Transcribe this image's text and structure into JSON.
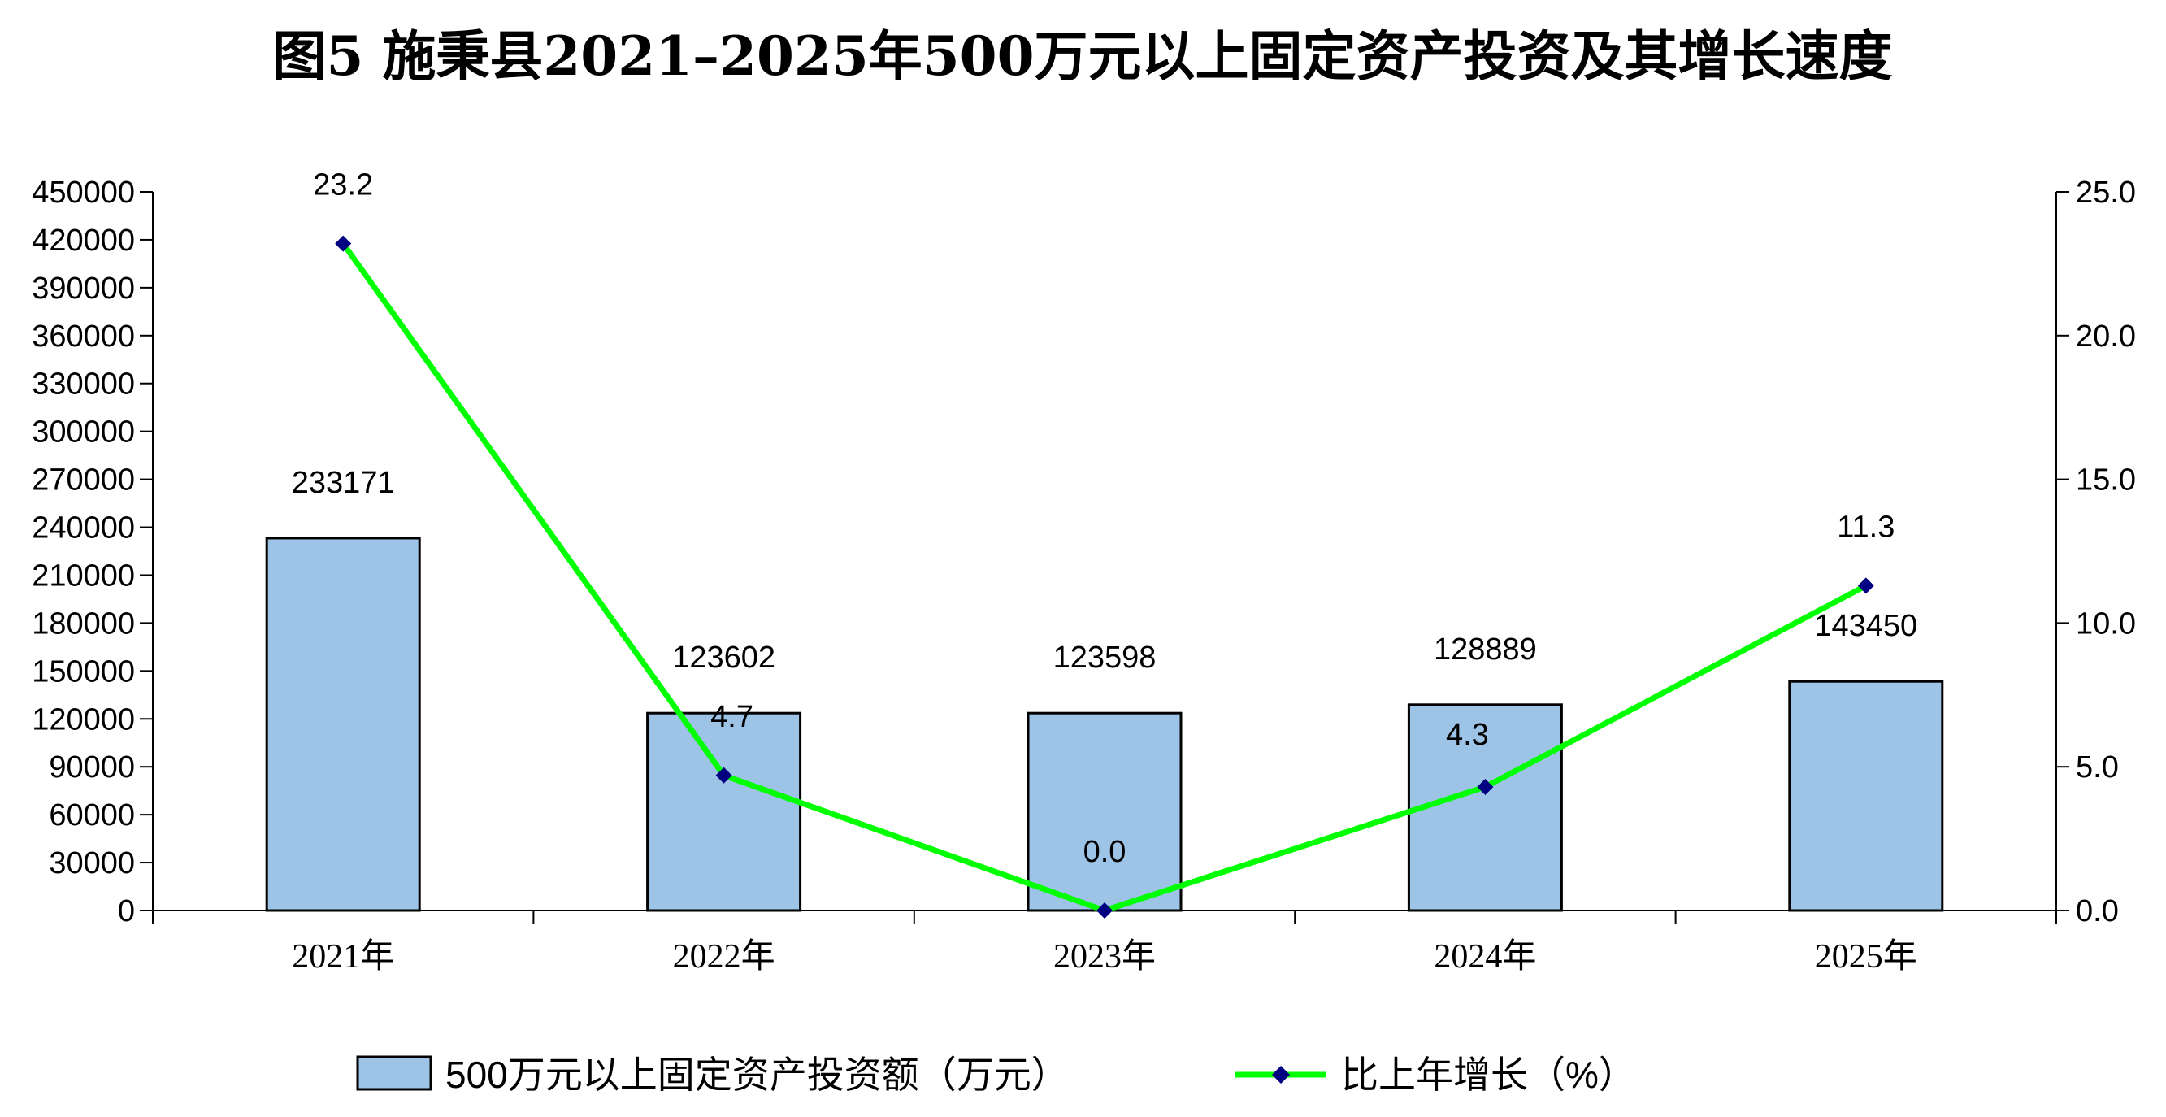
{
  "chart_data": {
    "type": "bar+line",
    "title": "图5  施秉县2021–2025年500万元以上固定资产投资及其增长速度",
    "categories": [
      "2021年",
      "2022年",
      "2023年",
      "2024年",
      "2025年"
    ],
    "series": [
      {
        "name": "500万元以上固定资产投资额（万元）",
        "type": "bar",
        "axis": "left",
        "values": [
          233171,
          123602,
          123598,
          128889,
          143450
        ],
        "labels": [
          "233171",
          "123602",
          "123598",
          "128889",
          "143450"
        ],
        "color": "#9dc3e6"
      },
      {
        "name": "比上年增长（%）",
        "type": "line",
        "axis": "right",
        "values": [
          23.2,
          4.7,
          0.0,
          4.3,
          11.3
        ],
        "labels": [
          "23.2",
          "4.7",
          "0.0",
          "4.3",
          "11.3"
        ],
        "color": "#00ff00",
        "marker_color": "#000080"
      }
    ],
    "y_left": {
      "ylim": [
        0,
        450000
      ],
      "ticks": [
        "0",
        "30000",
        "60000",
        "90000",
        "120000",
        "150000",
        "180000",
        "210000",
        "240000",
        "270000",
        "300000",
        "330000",
        "360000",
        "390000",
        "420000",
        "450000"
      ]
    },
    "y_right": {
      "ylim": [
        0,
        25
      ],
      "ticks": [
        "0.0",
        "5.0",
        "10.0",
        "15.0",
        "20.0",
        "25.0"
      ]
    },
    "grid": false,
    "legend": "bottom"
  }
}
